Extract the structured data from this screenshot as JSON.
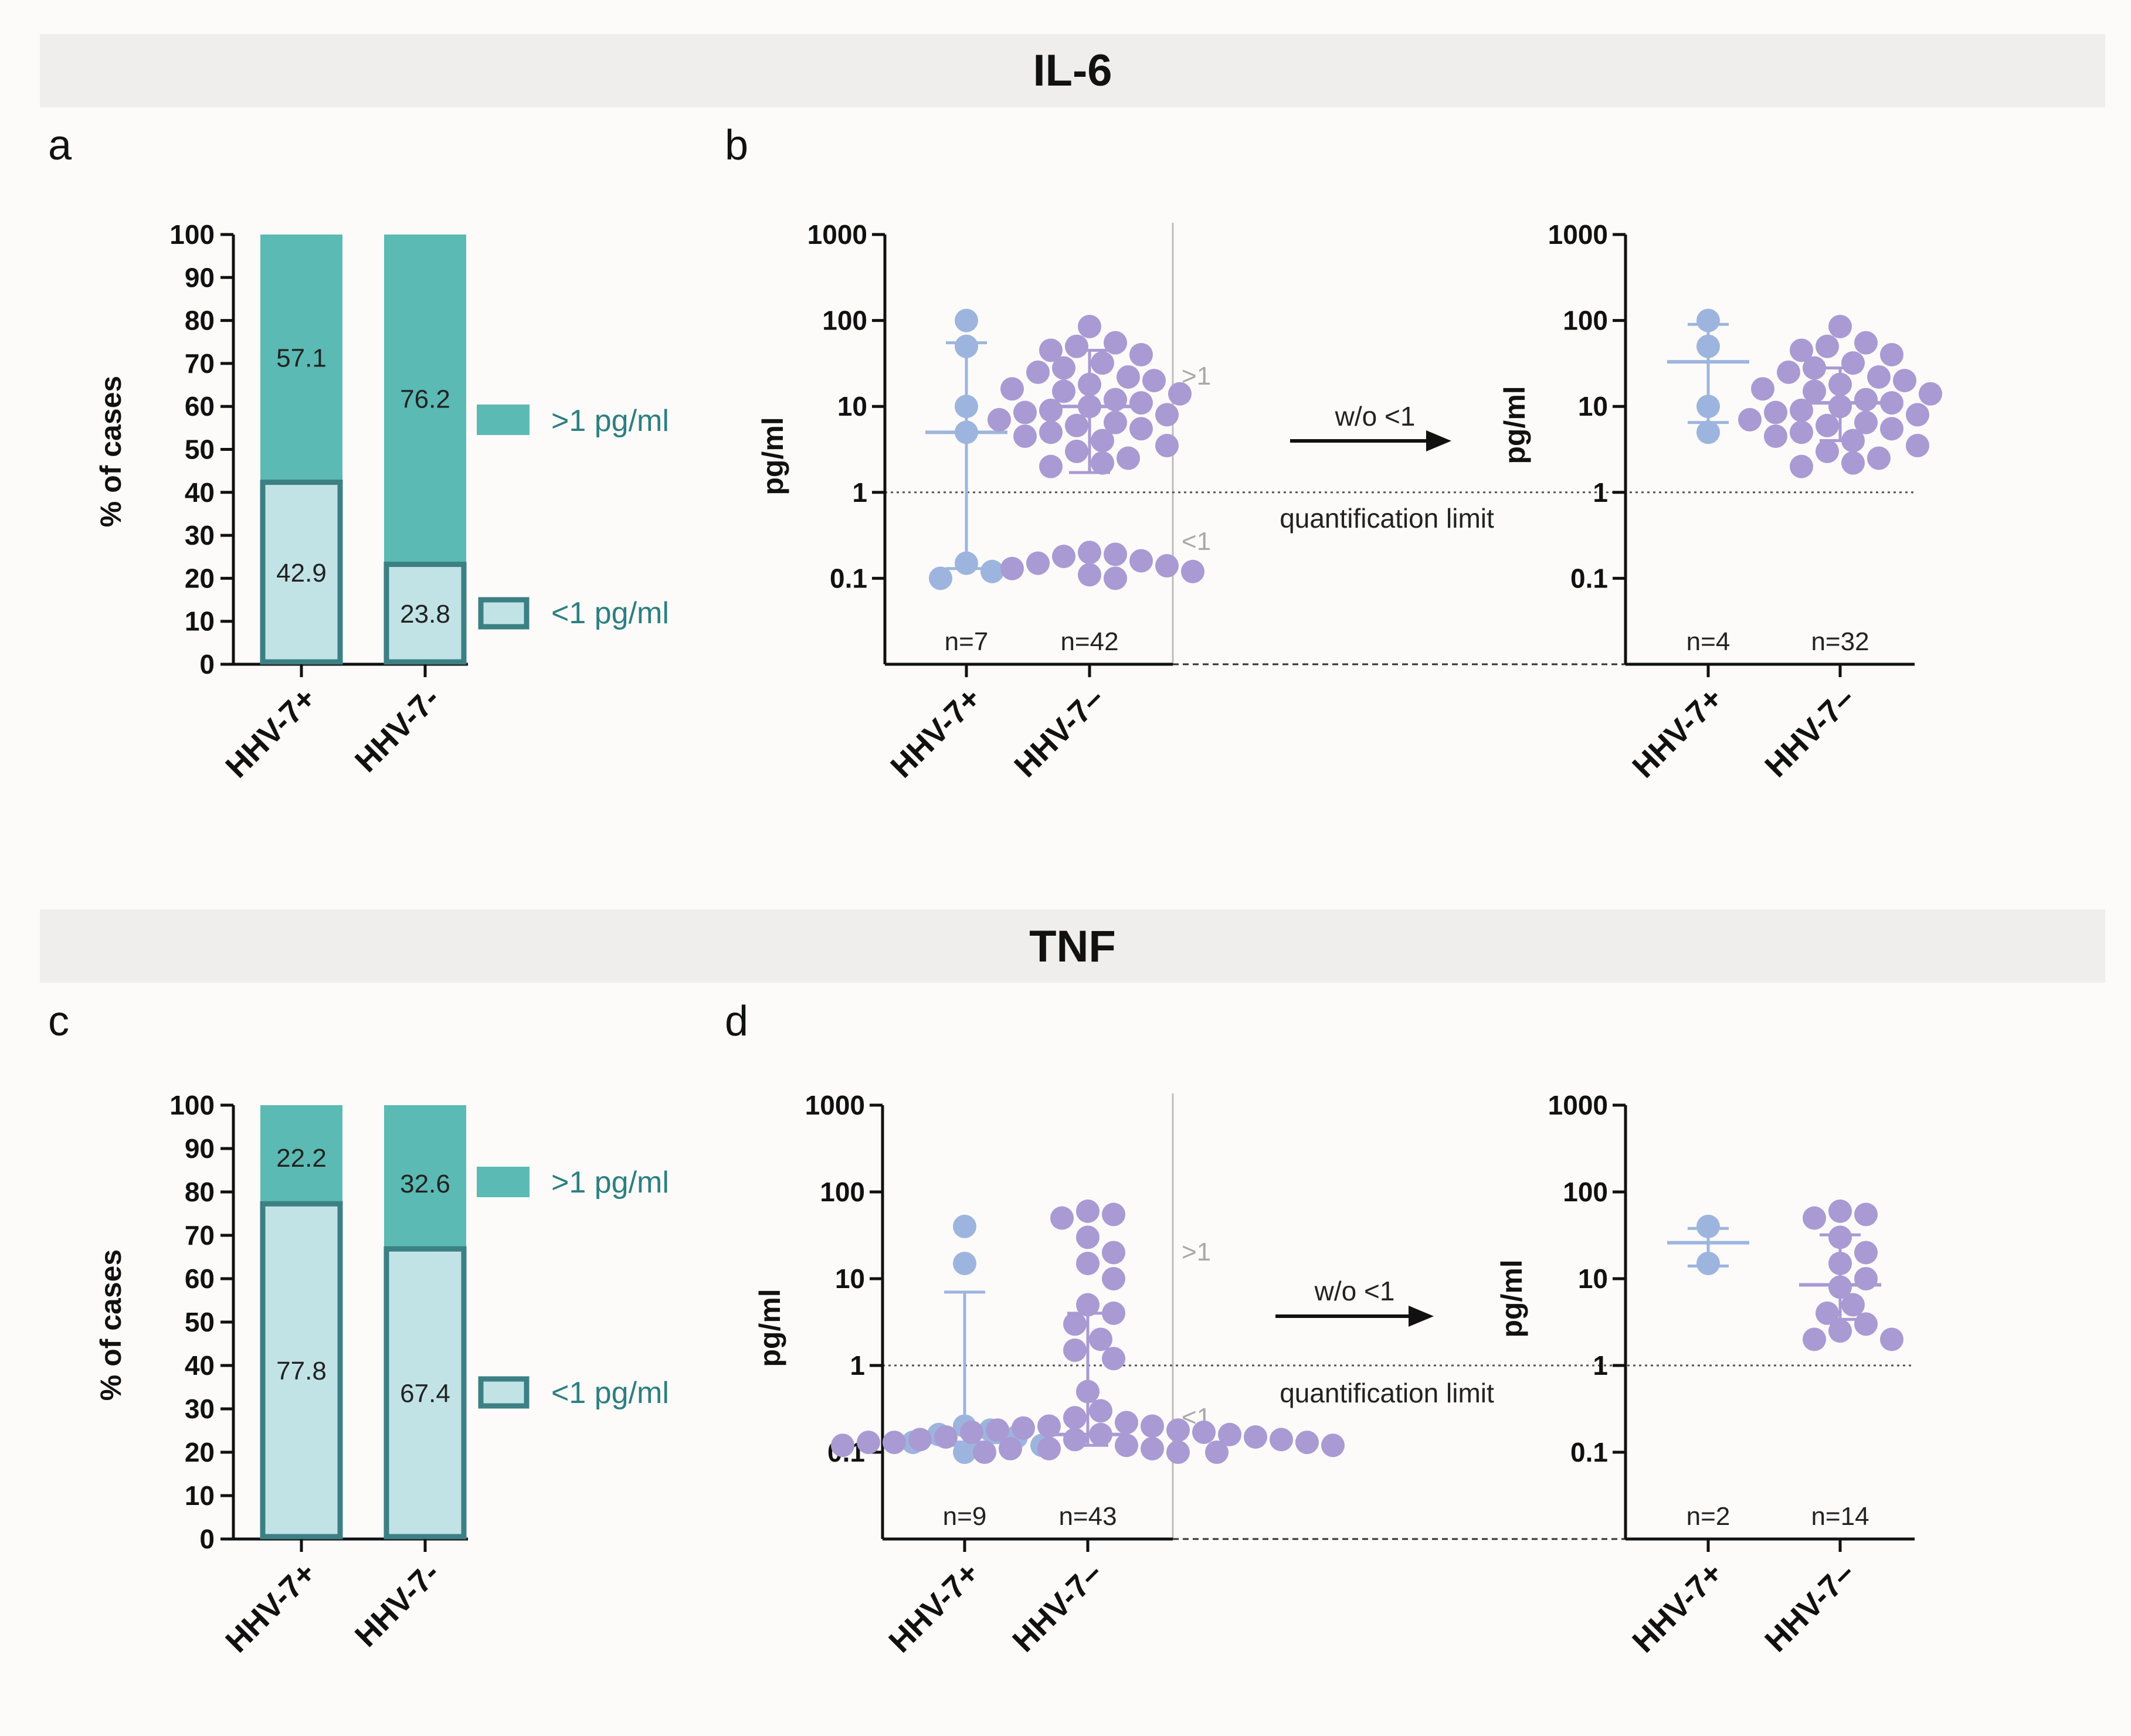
{
  "colors": {
    "above": "#5bbab3",
    "below": "#c2e3e6",
    "below_border": "#3c8084",
    "hhv_pos": "#9db5de",
    "hhv_neg": "#a99ad3",
    "header_bg": "#efeeed"
  },
  "headers": [
    "IL-6",
    "TNF"
  ],
  "panel_letters": [
    "a",
    "b",
    "c",
    "d"
  ],
  "bar_axis_label": "% of cases",
  "scatter_axis_label": "pg/ml",
  "legend": {
    "above": ">1 pg/ml",
    "below": "<1 pg/ml"
  },
  "annotations": {
    "gt1": ">1",
    "lt1": "<1",
    "arrow": "w/o <1",
    "qlimit": "quantification limit"
  },
  "chart_data": [
    {
      "panel": "a",
      "type": "bar",
      "title": "IL-6",
      "stacked": true,
      "categories": [
        "HHV-7+",
        "HHV-7-"
      ],
      "series": [
        {
          "name": "<1 pg/ml",
          "values": [
            42.9,
            23.8
          ],
          "labels": [
            "42.9",
            "23.8"
          ]
        },
        {
          "name": ">1 pg/ml",
          "values": [
            57.1,
            76.2
          ],
          "labels": [
            "57.1",
            "76.2"
          ]
        }
      ],
      "ylabel": "% of cases",
      "ylim": [
        0,
        100
      ],
      "yticks": [
        "0",
        "10",
        "20",
        "30",
        "40",
        "50",
        "60",
        "70",
        "80",
        "90",
        "100"
      ]
    },
    {
      "panel": "b",
      "type": "scatter",
      "title": "IL-6",
      "yscale": "log",
      "left": {
        "categories": [
          "HHV-7+",
          "HHV-7–"
        ],
        "n": [
          "n=7",
          "n=42"
        ],
        "groups": [
          {
            "name": "HHV-7+",
            "points": [
              100,
              50,
              10,
              5,
              0.15,
              0.12,
              0.1
            ],
            "median": 5,
            "range": [
              0.13,
              55
            ]
          },
          {
            "name": "HHV-7–",
            "points": [
              85,
              55,
              50,
              45,
              40,
              32,
              28,
              25,
              22,
              20,
              18,
              16,
              15,
              14,
              12,
              11,
              10,
              9,
              8.5,
              8,
              7,
              6.5,
              6,
              5.5,
              5,
              4.5,
              4,
              3.5,
              3,
              2.5,
              2.2,
              2,
              0.2,
              0.19,
              0.18,
              0.16,
              0.15,
              0.14,
              0.13,
              0.12,
              0.11,
              0.1
            ],
            "median": 10,
            "range": [
              1.7,
              45
            ]
          }
        ],
        "ylim": [
          0.01,
          1000
        ],
        "yticks": [
          "0.1",
          "1",
          "10",
          "100",
          "1000"
        ]
      },
      "right": {
        "categories": [
          "HHV-7+",
          "HHV-7–"
        ],
        "n": [
          "n=4",
          "n=32"
        ],
        "groups": [
          {
            "name": "HHV-7+",
            "points": [
              100,
              50,
              10,
              5
            ],
            "median": 33,
            "range": [
              6.5,
              90
            ]
          },
          {
            "name": "HHV-7–",
            "points": [
              85,
              55,
              50,
              45,
              40,
              32,
              28,
              25,
              22,
              20,
              18,
              16,
              15,
              14,
              12,
              11,
              10,
              9,
              8.5,
              8,
              7,
              6.5,
              6,
              5.5,
              5,
              4.5,
              4,
              3.5,
              3,
              2.5,
              2.2,
              2
            ],
            "median": 11,
            "range": [
              4,
              28
            ]
          }
        ],
        "ylim": [
          0.01,
          1000
        ],
        "yticks": [
          "0.1",
          "1",
          "10",
          "100",
          "1000"
        ]
      },
      "quantification_limit": 1
    },
    {
      "panel": "c",
      "type": "bar",
      "title": "TNF",
      "stacked": true,
      "categories": [
        "HHV-7+",
        "HHV-7-"
      ],
      "series": [
        {
          "name": "<1 pg/ml",
          "values": [
            77.8,
            67.4
          ],
          "labels": [
            "77.8",
            "67.4"
          ]
        },
        {
          "name": ">1 pg/ml",
          "values": [
            22.2,
            32.6
          ],
          "labels": [
            "22.2",
            "32.6"
          ]
        }
      ],
      "ylabel": "% of cases",
      "ylim": [
        0,
        100
      ],
      "yticks": [
        "0",
        "10",
        "20",
        "30",
        "40",
        "50",
        "60",
        "70",
        "80",
        "90",
        "100"
      ]
    },
    {
      "panel": "d",
      "type": "scatter",
      "title": "TNF",
      "yscale": "log",
      "left": {
        "categories": [
          "HHV-7+",
          "HHV-7–"
        ],
        "n": [
          "n=9",
          "n=43"
        ],
        "groups": [
          {
            "name": "HHV-7+",
            "points": [
              40,
              15,
              0.2,
              0.18,
              0.16,
              0.15,
              0.13,
              0.12,
              0.1
            ],
            "median": 0.13,
            "range": [
              0.12,
              7
            ]
          },
          {
            "name": "HHV-7–",
            "points": [
              60,
              55,
              50,
              30,
              20,
              15,
              10,
              5,
              4,
              3,
              2,
              1.5,
              1.2,
              0.5,
              0.3,
              0.25,
              0.22,
              0.2,
              0.2,
              0.19,
              0.18,
              0.18,
              0.17,
              0.17,
              0.16,
              0.16,
              0.15,
              0.15,
              0.14,
              0.14,
              0.14,
              0.13,
              0.13,
              0.13,
              0.12,
              0.12,
              0.12,
              0.11,
              0.11,
              0.11,
              0.1,
              0.1,
              0.1
            ],
            "median": 0.16,
            "range": [
              0.12,
              4
            ]
          }
        ],
        "ylim": [
          0.01,
          1000
        ],
        "yticks": [
          "0.1",
          "1",
          "10",
          "100",
          "1000"
        ]
      },
      "right": {
        "categories": [
          "HHV-7+",
          "HHV-7–"
        ],
        "n": [
          "n=2",
          "n=14"
        ],
        "groups": [
          {
            "name": "HHV-7+",
            "points": [
              40,
              15
            ],
            "median": 26,
            "range": [
              14,
              38
            ]
          },
          {
            "name": "HHV-7–",
            "points": [
              60,
              55,
              50,
              30,
              20,
              15,
              10,
              8,
              5,
              4,
              3,
              2.5,
              2,
              2
            ],
            "median": 8.5,
            "range": [
              3.4,
              32
            ]
          }
        ],
        "ylim": [
          0.01,
          1000
        ],
        "yticks": [
          "0.1",
          "1",
          "10",
          "100",
          "1000"
        ]
      },
      "quantification_limit": 1
    }
  ]
}
